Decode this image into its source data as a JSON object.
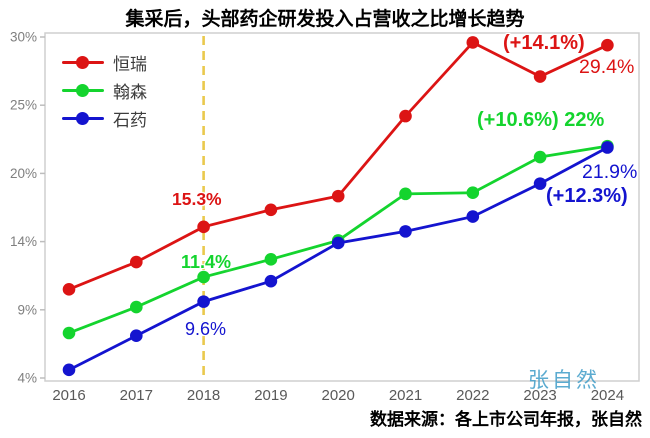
{
  "chart_data": {
    "type": "line",
    "title": "集采后，头部药企研发投入占营收之比增长趋势",
    "categories": [
      "2016",
      "2017",
      "2018",
      "2019",
      "2020",
      "2021",
      "2022",
      "2023",
      "2024"
    ],
    "y_tick_labels": [
      "4%",
      "9%",
      "14%",
      "20%",
      "25%",
      "30%"
    ],
    "y_tick_values": [
      4,
      9,
      14,
      20,
      25,
      30
    ],
    "grid": false,
    "legend_position": "top-left",
    "series": [
      {
        "name": "恒瑞",
        "color": "#dc1414",
        "values": [
          10.5,
          12.5,
          15.3,
          16.8,
          18.0,
          24.2,
          29.6,
          27.1,
          29.4
        ]
      },
      {
        "name": "翰森",
        "color": "#14d42e",
        "values": [
          7.3,
          9.2,
          11.4,
          12.7,
          14.1,
          18.2,
          18.3,
          21.2,
          22.0
        ]
      },
      {
        "name": "石药",
        "color": "#1414cf",
        "values": [
          4.6,
          7.1,
          9.6,
          11.1,
          13.9,
          14.9,
          16.2,
          19.1,
          21.9
        ]
      }
    ],
    "reference_line": {
      "x": "2018",
      "color": "#eac94d",
      "style": "dashed"
    },
    "annotations": {
      "hengrui_2018": {
        "text": "15.3%"
      },
      "hansoh_2018": {
        "text": "11.4%"
      },
      "shiyao_2018": {
        "text": "9.6%"
      },
      "hengrui_gain": {
        "text": "(+14.1%)"
      },
      "hengrui_2024": {
        "text": "29.4%"
      },
      "hansoh_gain_2024": {
        "text": "(+10.6%) 22%"
      },
      "shiyao_2024": {
        "text": "21.9%"
      },
      "shiyao_gain": {
        "text": "(+12.3%)"
      }
    }
  },
  "source_text": "数据来源：各上市公司年报，张自然",
  "watermark_text": "张自然"
}
